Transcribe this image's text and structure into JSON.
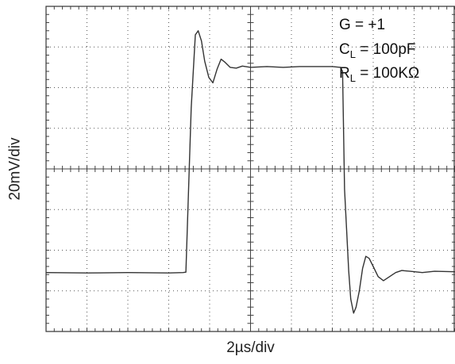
{
  "chart_data": {
    "type": "line",
    "xlabel": "2µs/div",
    "ylabel": "20mV/div",
    "x_unit": "div",
    "y_unit": "div",
    "xlim": [
      0,
      10
    ],
    "ylim": [
      -4,
      4
    ],
    "grid": true,
    "series": [
      {
        "color": "#333333",
        "x": [
          0,
          1,
          2,
          3,
          3.35,
          3.42,
          3.55,
          3.65,
          3.72,
          3.8,
          3.88,
          3.98,
          4.08,
          4.18,
          4.28,
          4.38,
          4.5,
          4.65,
          4.8,
          5,
          5.4,
          5.8,
          6.2,
          6.6,
          7.0,
          7.2,
          7.25,
          7.3,
          7.4,
          7.45,
          7.52,
          7.58,
          7.66,
          7.74,
          7.82,
          7.9,
          8.0,
          8.12,
          8.25,
          8.4,
          8.55,
          8.7,
          8.9,
          9.2,
          9.5,
          10
        ],
        "y": [
          -2.55,
          -2.56,
          -2.55,
          -2.56,
          -2.55,
          -2.54,
          1.5,
          3.3,
          3.4,
          3.15,
          2.65,
          2.25,
          2.12,
          2.45,
          2.7,
          2.62,
          2.5,
          2.48,
          2.53,
          2.5,
          2.52,
          2.5,
          2.52,
          2.52,
          2.52,
          2.5,
          2.4,
          -0.5,
          -2.5,
          -3.2,
          -3.55,
          -3.4,
          -3.0,
          -2.45,
          -2.15,
          -2.2,
          -2.4,
          -2.65,
          -2.75,
          -2.65,
          -2.55,
          -2.5,
          -2.52,
          -2.55,
          -2.52,
          -2.53
        ]
      }
    ],
    "annotations": [
      {
        "text": "G = +1"
      },
      {
        "main": "C",
        "sub": "L",
        "rest": " = 100pF"
      },
      {
        "main": "R",
        "sub": "L",
        "rest": " = 100KΩ"
      }
    ]
  }
}
